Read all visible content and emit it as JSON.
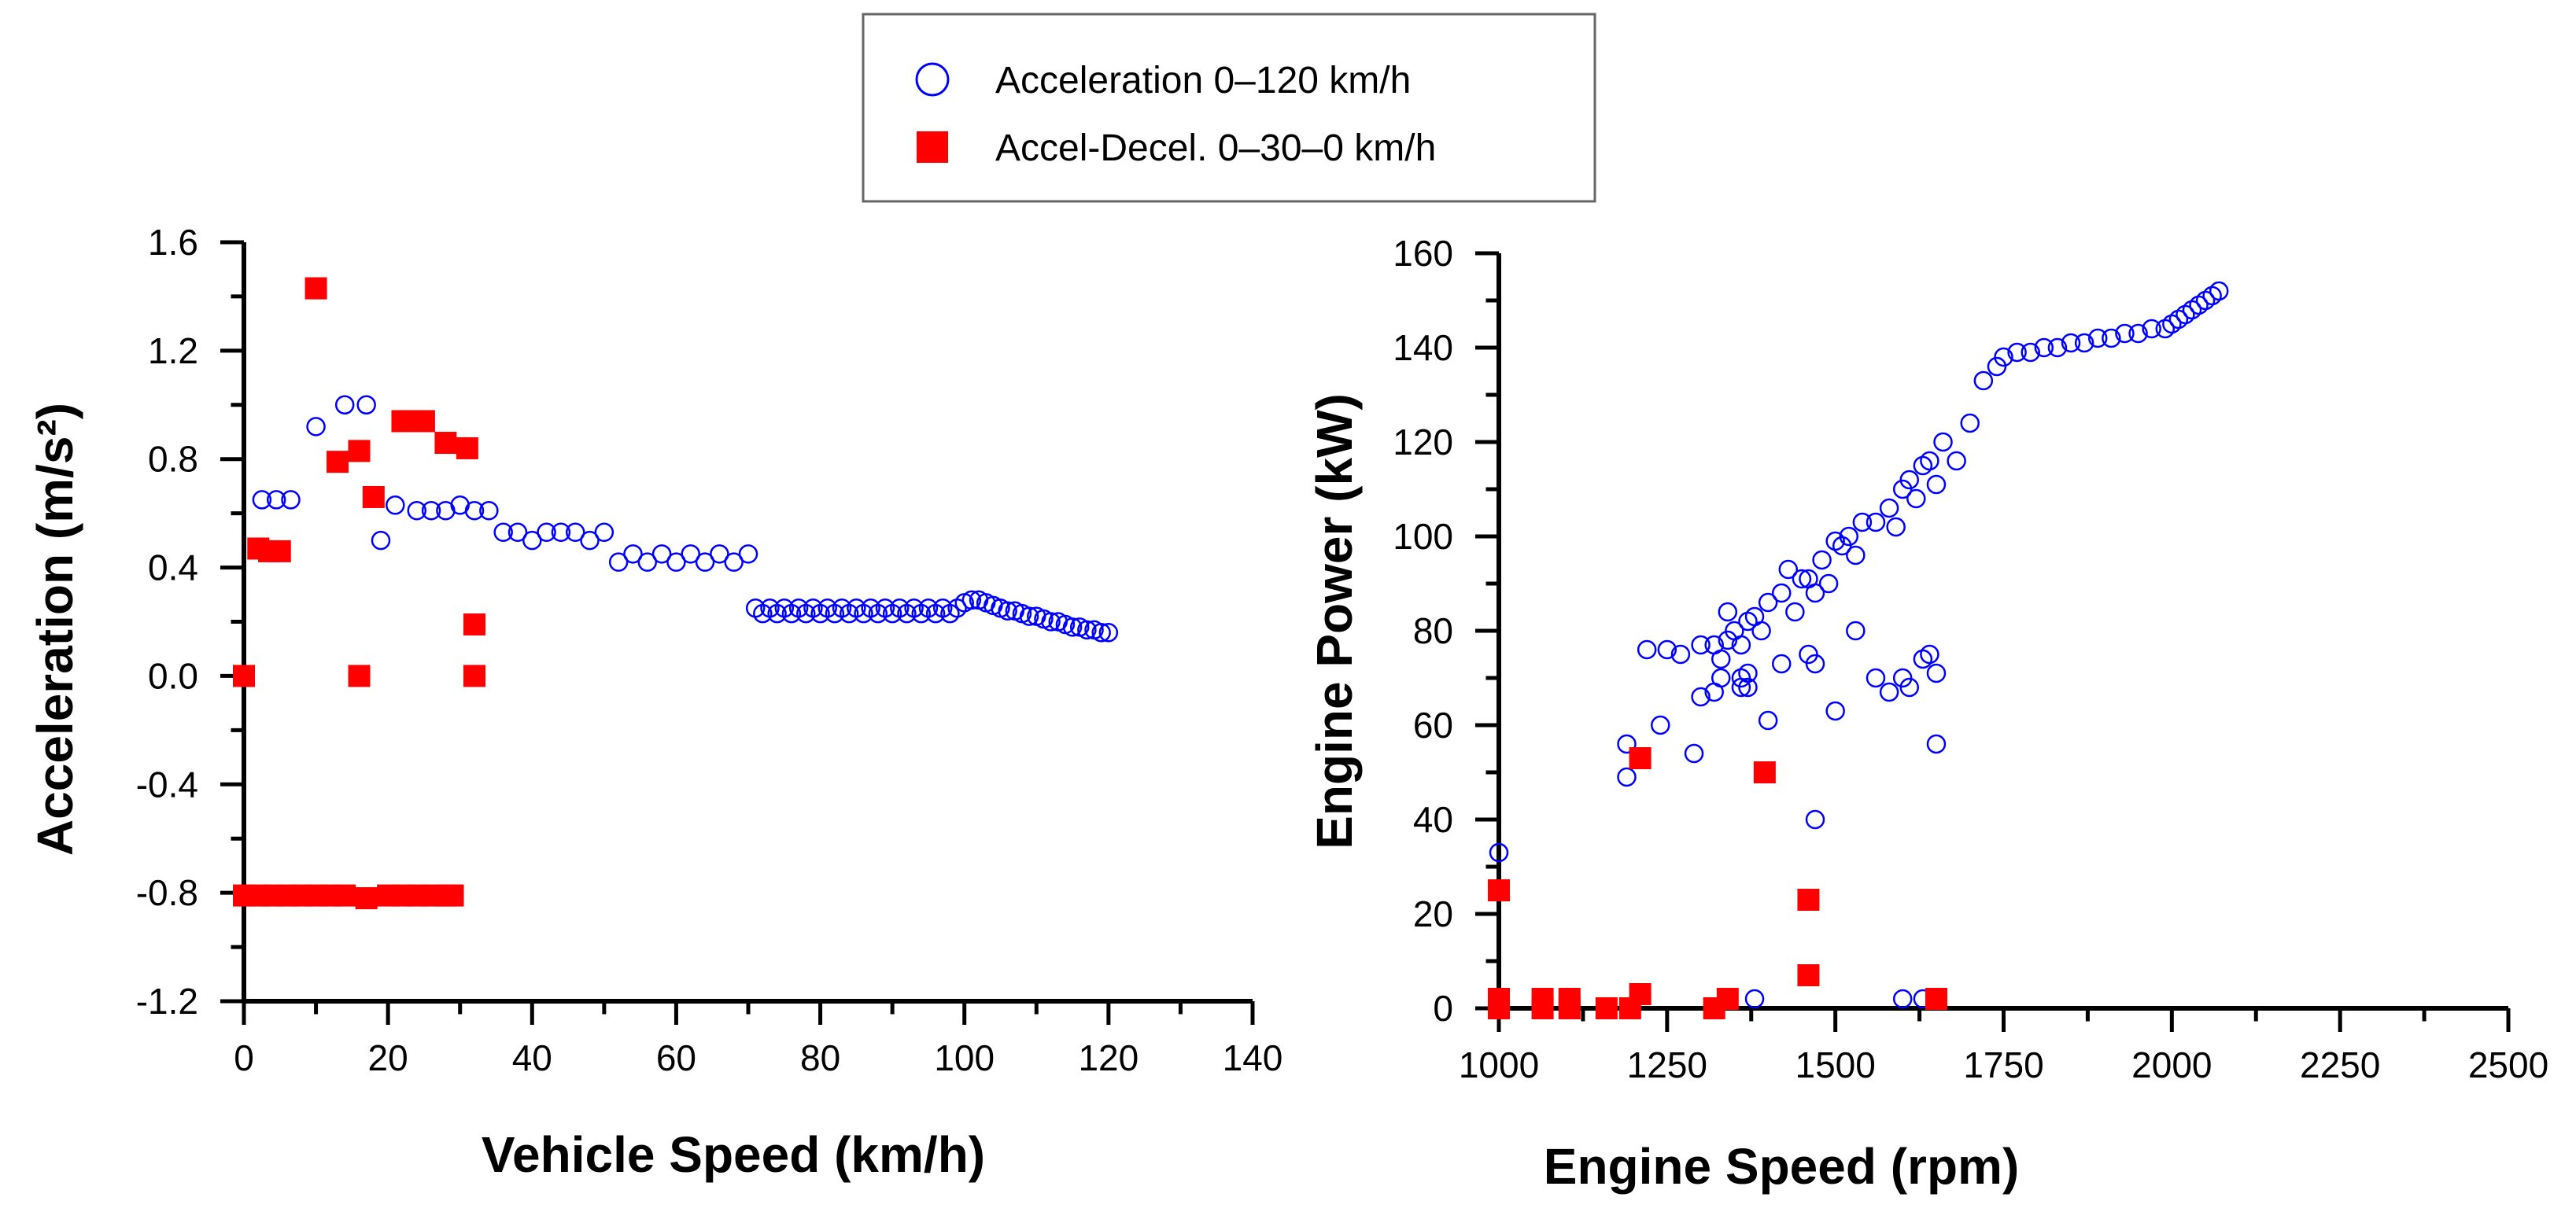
{
  "legend": {
    "location": "top-center",
    "entries": [
      {
        "label": "Acceleration 0–120 km/h",
        "marker": "open-circle",
        "color": "#0000ff"
      },
      {
        "label": "Accel-Decel. 0–30–0 km/h",
        "marker": "filled-square",
        "color": "#ff0000"
      }
    ]
  },
  "colors": {
    "series_1": "#0000ff",
    "series_2": "#ff0000",
    "axes": "#000000"
  },
  "chart_data": [
    {
      "type": "scatter",
      "title": "",
      "xlabel": "Vehicle Speed (km/h)",
      "ylabel": "Acceleration (m/s²)",
      "xlim": [
        0,
        140
      ],
      "ylim": [
        -1.2,
        1.6
      ],
      "xticks": [
        0,
        20,
        40,
        60,
        80,
        100,
        120,
        140
      ],
      "xtick_labels": [
        "0",
        "20",
        "40",
        "60",
        "80",
        "100",
        "120",
        "140"
      ],
      "yticks": [
        -1.2,
        -0.8,
        -0.4,
        0.0,
        0.4,
        0.8,
        1.2,
        1.6
      ],
      "ytick_labels": [
        "-1.2",
        "-0.8",
        "-0.4",
        "0.0",
        "0.4",
        "0.8",
        "1.2",
        "1.6"
      ],
      "grid": false,
      "series": [
        {
          "name": "Acceleration 0–120 km/h",
          "marker": "open-circle",
          "x": [
            2.5,
            4.5,
            6.5,
            10,
            14,
            17,
            19,
            21,
            24,
            26,
            28,
            30,
            32,
            34,
            36,
            38,
            40,
            42,
            44,
            46,
            48,
            50,
            52,
            54,
            56,
            58,
            60,
            62,
            64,
            66,
            68,
            70,
            71,
            72,
            73,
            74,
            75,
            76,
            77,
            78,
            79,
            80,
            81,
            82,
            83,
            84,
            85,
            86,
            87,
            88,
            89,
            90,
            91,
            92,
            93,
            94,
            95,
            96,
            97,
            98,
            99,
            100,
            101,
            102,
            103,
            104,
            105,
            106,
            107,
            108,
            109,
            110,
            111,
            112,
            113,
            114,
            115,
            116,
            117,
            118,
            119,
            120
          ],
          "y": [
            0.65,
            0.65,
            0.65,
            0.92,
            1.0,
            1.0,
            0.5,
            0.63,
            0.61,
            0.61,
            0.61,
            0.63,
            0.61,
            0.61,
            0.53,
            0.53,
            0.5,
            0.53,
            0.53,
            0.53,
            0.5,
            0.53,
            0.42,
            0.45,
            0.42,
            0.45,
            0.42,
            0.45,
            0.42,
            0.45,
            0.42,
            0.45,
            0.25,
            0.23,
            0.25,
            0.23,
            0.25,
            0.23,
            0.25,
            0.23,
            0.25,
            0.23,
            0.25,
            0.23,
            0.25,
            0.23,
            0.25,
            0.23,
            0.25,
            0.23,
            0.25,
            0.23,
            0.25,
            0.23,
            0.25,
            0.23,
            0.25,
            0.23,
            0.25,
            0.23,
            0.25,
            0.27,
            0.28,
            0.28,
            0.27,
            0.26,
            0.25,
            0.24,
            0.24,
            0.23,
            0.22,
            0.22,
            0.21,
            0.2,
            0.2,
            0.19,
            0.18,
            0.18,
            0.17,
            0.17,
            0.16,
            0.16
          ]
        },
        {
          "name": "Accel-Decel. 0–30–0 km/h",
          "marker": "filled-square",
          "x": [
            0,
            2,
            3.5,
            5,
            10,
            13,
            16,
            16,
            18,
            22,
            25,
            28,
            31,
            32,
            32,
            0,
            2,
            4,
            6,
            8,
            10,
            12,
            14,
            17,
            20,
            22,
            24,
            26,
            28,
            29
          ],
          "y": [
            0.0,
            0.47,
            0.46,
            0.46,
            1.43,
            0.79,
            0.83,
            0.0,
            0.66,
            0.94,
            0.94,
            0.86,
            0.84,
            0.19,
            0.0,
            -0.81,
            -0.81,
            -0.81,
            -0.81,
            -0.81,
            -0.81,
            -0.81,
            -0.81,
            -0.82,
            -0.81,
            -0.81,
            -0.81,
            -0.81,
            -0.81,
            -0.81
          ]
        }
      ]
    },
    {
      "type": "scatter",
      "title": "",
      "xlabel": "Engine Speed (rpm)",
      "ylabel": "Engine Power (kW)",
      "xlim": [
        1000,
        2500
      ],
      "ylim": [
        0,
        160
      ],
      "xticks": [
        1000,
        1250,
        1500,
        1750,
        2000,
        2250,
        2500
      ],
      "xtick_labels": [
        "1000",
        "1250",
        "1500",
        "1750",
        "2000",
        "2250",
        "2500"
      ],
      "yticks": [
        0,
        20,
        40,
        60,
        80,
        100,
        120,
        140,
        160
      ],
      "ytick_labels": [
        "0",
        "20",
        "40",
        "60",
        "80",
        "100",
        "120",
        "140",
        "160"
      ],
      "grid": false,
      "series": [
        {
          "name": "Acceleration 0–120 km/h",
          "marker": "open-circle",
          "x": [
            1000,
            1190,
            1190,
            1220,
            1240,
            1270,
            1290,
            1300,
            1320,
            1330,
            1350,
            1360,
            1370,
            1380,
            1400,
            1420,
            1430,
            1440,
            1450,
            1460,
            1470,
            1480,
            1490,
            1500,
            1510,
            1520,
            1530,
            1540,
            1560,
            1580,
            1590,
            1600,
            1610,
            1620,
            1630,
            1640,
            1650,
            1660,
            1680,
            1700,
            1720,
            1740,
            1750,
            1770,
            1790,
            1810,
            1830,
            1850,
            1870,
            1890,
            1910,
            1930,
            1950,
            1970,
            1990,
            2000,
            2010,
            2020,
            2030,
            2040,
            2050,
            2060,
            2070,
            1330,
            1340,
            1360,
            1370,
            1400,
            1420,
            1460,
            1470,
            1500,
            1530,
            1560,
            1580,
            1600,
            1610,
            1630,
            1640,
            1650,
            1320,
            1340,
            1360,
            1370,
            1390,
            1300,
            1250,
            1650,
            1470,
            1380,
            1600,
            1630
          ],
          "y": [
            33,
            56,
            49,
            76,
            60,
            75,
            54,
            77,
            77,
            74,
            80,
            77,
            82,
            83,
            86,
            88,
            93,
            84,
            91,
            91,
            88,
            95,
            90,
            99,
            98,
            100,
            96,
            103,
            103,
            106,
            102,
            110,
            112,
            108,
            115,
            116,
            111,
            120,
            116,
            124,
            133,
            136,
            138,
            139,
            139,
            140,
            140,
            141,
            141,
            142,
            142,
            143,
            143,
            144,
            144,
            145,
            146,
            147,
            148,
            149,
            150,
            151,
            152,
            70,
            84,
            68,
            71,
            61,
            73,
            75,
            73,
            63,
            80,
            70,
            67,
            70,
            68,
            74,
            75,
            71,
            67,
            78,
            70,
            68,
            80,
            66,
            76,
            56,
            40,
            2,
            2,
            2
          ],
          "points": [
            [
              1000,
              33
            ],
            [
              1190,
              56
            ],
            [
              1190,
              49
            ],
            [
              1220,
              76
            ],
            [
              1240,
              60
            ],
            [
              1270,
              75
            ],
            [
              1290,
              54
            ],
            [
              1300,
              77
            ],
            [
              1320,
              77
            ],
            [
              1330,
              74
            ],
            [
              1350,
              80
            ],
            [
              1360,
              77
            ],
            [
              1370,
              82
            ],
            [
              1380,
              83
            ],
            [
              1400,
              86
            ],
            [
              1420,
              88
            ],
            [
              1430,
              93
            ],
            [
              1440,
              84
            ],
            [
              1450,
              91
            ],
            [
              1460,
              91
            ],
            [
              1470,
              88
            ],
            [
              1480,
              95
            ],
            [
              1490,
              90
            ],
            [
              1500,
              99
            ],
            [
              1510,
              98
            ],
            [
              1520,
              100
            ],
            [
              1530,
              96
            ],
            [
              1540,
              103
            ],
            [
              1560,
              103
            ],
            [
              1580,
              106
            ],
            [
              1590,
              102
            ],
            [
              1600,
              110
            ],
            [
              1610,
              112
            ],
            [
              1620,
              108
            ],
            [
              1630,
              115
            ],
            [
              1640,
              116
            ],
            [
              1650,
              111
            ],
            [
              1660,
              120
            ],
            [
              1680,
              116
            ],
            [
              1700,
              124
            ],
            [
              1720,
              133
            ],
            [
              1740,
              136
            ],
            [
              1750,
              138
            ],
            [
              1770,
              139
            ],
            [
              1790,
              139
            ],
            [
              1810,
              140
            ],
            [
              1830,
              140
            ],
            [
              1850,
              141
            ],
            [
              1870,
              141
            ],
            [
              1890,
              142
            ],
            [
              1910,
              142
            ],
            [
              1930,
              143
            ],
            [
              1950,
              143
            ],
            [
              1970,
              144
            ],
            [
              1990,
              144
            ],
            [
              2000,
              145
            ],
            [
              2010,
              146
            ],
            [
              2020,
              147
            ],
            [
              2030,
              148
            ],
            [
              2040,
              149
            ],
            [
              2050,
              150
            ],
            [
              2060,
              151
            ],
            [
              2070,
              152
            ],
            [
              1330,
              70
            ],
            [
              1340,
              84
            ],
            [
              1360,
              68
            ],
            [
              1370,
              71
            ],
            [
              1400,
              61
            ],
            [
              1420,
              73
            ],
            [
              1460,
              75
            ],
            [
              1470,
              73
            ],
            [
              1500,
              63
            ],
            [
              1530,
              80
            ],
            [
              1560,
              70
            ],
            [
              1580,
              67
            ],
            [
              1600,
              70
            ],
            [
              1610,
              68
            ],
            [
              1630,
              74
            ],
            [
              1640,
              75
            ],
            [
              1650,
              71
            ],
            [
              1320,
              67
            ],
            [
              1340,
              78
            ],
            [
              1360,
              70
            ],
            [
              1370,
              68
            ],
            [
              1390,
              80
            ],
            [
              1300,
              66
            ],
            [
              1250,
              76
            ],
            [
              1650,
              56
            ],
            [
              1470,
              40
            ],
            [
              1380,
              2
            ],
            [
              1600,
              2
            ],
            [
              1630,
              2
            ]
          ]
        },
        {
          "name": "Accel-Decel. 0–30–0 km/h",
          "marker": "filled-square",
          "x": [
            1000,
            1000,
            1000,
            1065,
            1065,
            1105,
            1105,
            1160,
            1195,
            1210,
            1210,
            1320,
            1340,
            1395,
            1460,
            1460,
            1650
          ],
          "y": [
            25,
            2,
            0,
            2,
            0,
            2,
            0,
            0,
            0,
            53,
            3,
            0,
            2,
            50,
            23,
            7,
            2
          ]
        }
      ]
    }
  ]
}
